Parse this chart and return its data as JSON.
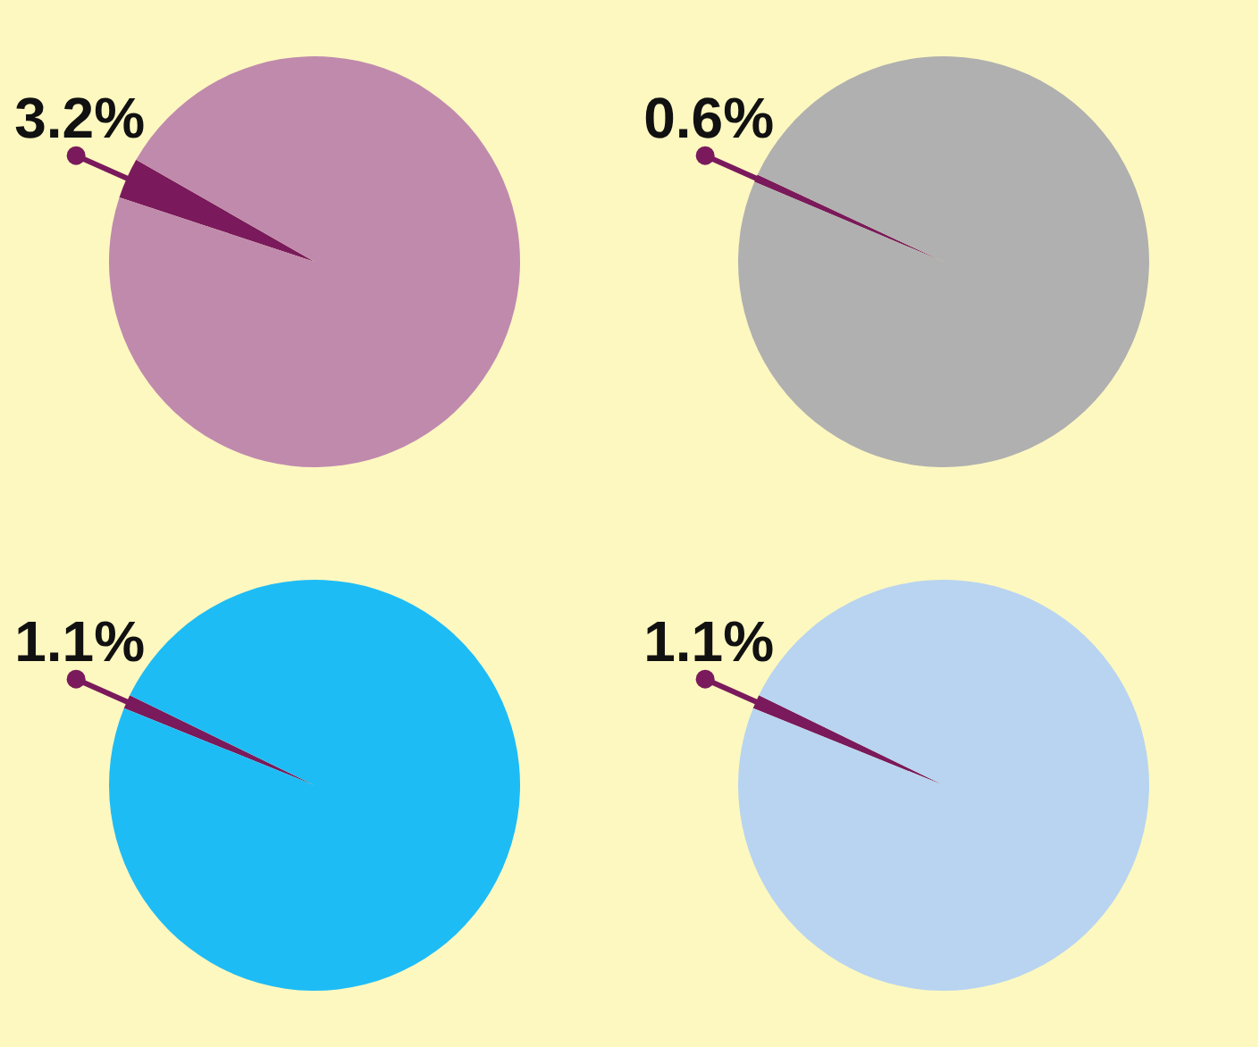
{
  "chart_data": [
    {
      "type": "pie",
      "categories": [
        null,
        null
      ],
      "values": [
        3.2,
        96.8
      ],
      "colors": [
        "#7a1a5c",
        "#c08aad"
      ],
      "value_labels": [
        "3.2%",
        null
      ]
    },
    {
      "type": "pie",
      "categories": [
        null,
        null
      ],
      "values": [
        0.6,
        99.4
      ],
      "colors": [
        "#7a1a5c",
        "#b0b0b0"
      ],
      "value_labels": [
        "0.6%",
        null
      ]
    },
    {
      "type": "pie",
      "categories": [
        null,
        null
      ],
      "values": [
        1.1,
        98.9
      ],
      "colors": [
        "#7a1a5c",
        "#1ebcf5"
      ],
      "value_labels": [
        "1.1%",
        null
      ]
    },
    {
      "type": "pie",
      "categories": [
        null,
        null
      ],
      "values": [
        1.1,
        98.9
      ],
      "colors": [
        "#7a1a5c",
        "#b8d4f0"
      ],
      "value_labels": [
        "1.1%",
        null
      ]
    }
  ]
}
